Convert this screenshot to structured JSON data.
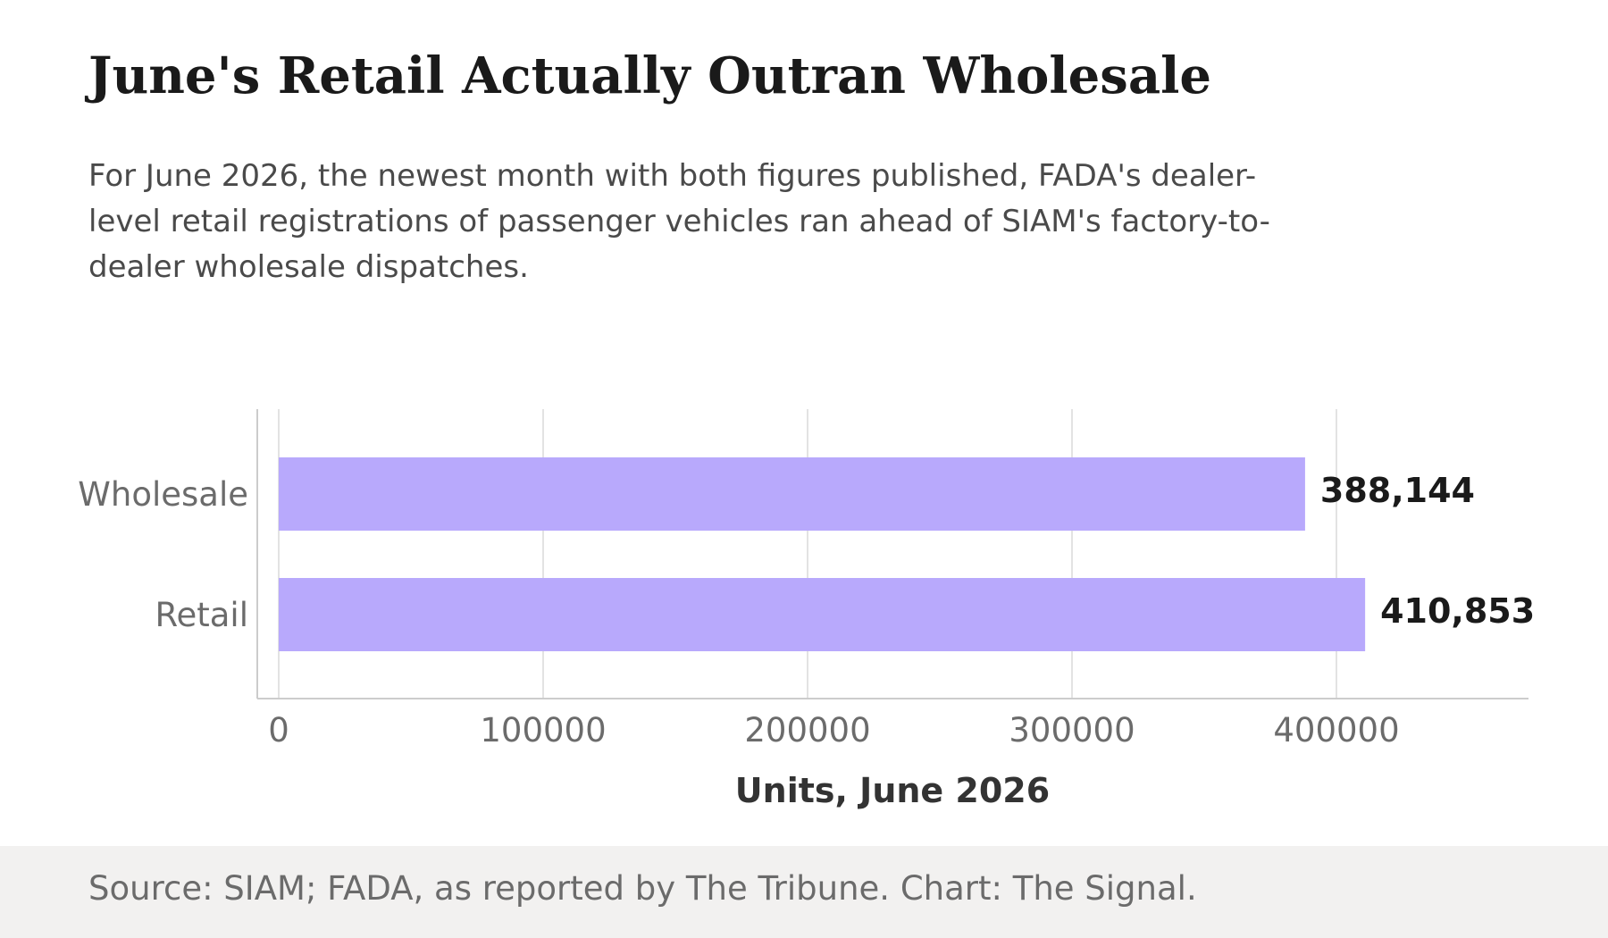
{
  "header": {
    "title": "June's Retail Actually Outran Wholesale",
    "subtitle": "For June 2026, the newest month with both figures published, FADA's dealer-level retail registrations of passenger vehicles ran ahead of SIAM's factory-to-dealer wholesale dispatches."
  },
  "footer": {
    "source": "Source: SIAM; FADA, as reported by The Tribune. Chart: The Signal."
  },
  "chart_data": {
    "type": "bar",
    "orientation": "horizontal",
    "title": "June's Retail Actually Outran Wholesale",
    "xlabel": "Units, June 2026",
    "ylabel": "",
    "categories": [
      "Wholesale",
      "Retail"
    ],
    "values": [
      388144,
      410853
    ],
    "value_labels": [
      "388,144",
      "410,853"
    ],
    "xlim": [
      0,
      460000
    ],
    "xticks": [
      0,
      100000,
      200000,
      300000,
      400000
    ],
    "xtick_labels": [
      "0",
      "100000",
      "200000",
      "300000",
      "400000"
    ],
    "grid": true,
    "legend": "none",
    "bar_color": "#b8a9fc",
    "gridline_color": "#e3e3e3",
    "axis_color": "#cccccc"
  }
}
